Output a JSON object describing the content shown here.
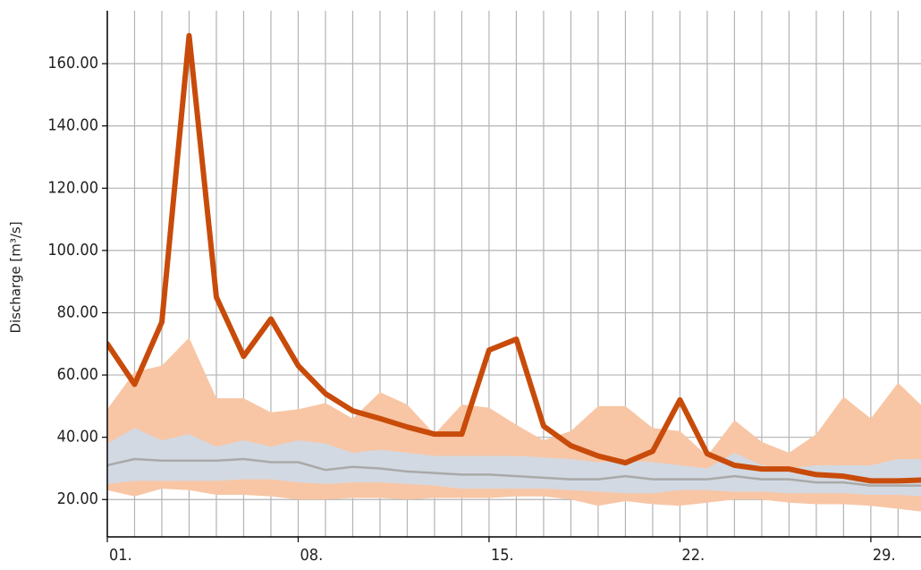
{
  "chart_data": {
    "type": "line",
    "y_label": "Discharge [m³/s]",
    "x": [
      1,
      2,
      3,
      4,
      5,
      6,
      7,
      8,
      9,
      10,
      11,
      12,
      13,
      14,
      15,
      16,
      17,
      18,
      19,
      20,
      21,
      22,
      23,
      24,
      25,
      26,
      27,
      28,
      29,
      30,
      31
    ],
    "xlim": [
      1,
      30.84
    ],
    "ylim": [
      8,
      177
    ],
    "grid": true,
    "grid_color": "#b3b3b3",
    "xgrid": [
      1,
      2,
      3,
      4,
      5,
      6,
      7,
      8,
      9,
      10,
      11,
      12,
      13,
      14,
      15,
      16,
      17,
      18,
      19,
      20,
      21,
      22,
      23,
      24,
      25,
      26,
      27,
      28,
      29,
      30
    ],
    "xticks": [
      {
        "value": 1,
        "label": "01."
      },
      {
        "value": 8,
        "label": "08."
      },
      {
        "value": 15,
        "label": "15."
      },
      {
        "value": 22,
        "label": "22."
      },
      {
        "value": 29,
        "label": "29."
      }
    ],
    "yticks": [
      {
        "value": 20,
        "label": "20.00"
      },
      {
        "value": 40,
        "label": "40.00"
      },
      {
        "value": 60,
        "label": "60.00"
      },
      {
        "value": 80,
        "label": "80.00"
      },
      {
        "value": 100,
        "label": "100.00"
      },
      {
        "value": 120,
        "label": "120.00"
      },
      {
        "value": 140,
        "label": "140.00"
      },
      {
        "value": 160,
        "label": "160.00"
      }
    ],
    "bands": [
      {
        "color": "#f8c6a5",
        "high": [
          49,
          61,
          63,
          72,
          52.5,
          52.5,
          48,
          49,
          51,
          46,
          54.5,
          50.5,
          41,
          50.5,
          49.5,
          44,
          39,
          42,
          50,
          50,
          43,
          42,
          34,
          45.5,
          38.5,
          35,
          41,
          53,
          46,
          57.5,
          49
        ],
        "low": [
          23,
          21,
          23.5,
          23,
          21.5,
          21.5,
          21,
          20,
          20,
          20.5,
          20.5,
          20,
          20.5,
          20.5,
          20.5,
          21,
          21,
          20,
          18,
          19.5,
          18.5,
          18,
          19,
          20,
          20,
          19,
          18.5,
          18.5,
          18,
          17,
          16
        ]
      },
      {
        "color": "#d3d9e2",
        "high": [
          38,
          43,
          39,
          41,
          37,
          39,
          37,
          39,
          38,
          35,
          36,
          35,
          34,
          34,
          34,
          34,
          33.5,
          33,
          32,
          32.5,
          32,
          31,
          30,
          35,
          31,
          30,
          31,
          31,
          31,
          33,
          33
        ],
        "low": [
          25,
          26,
          26,
          26,
          26,
          26.5,
          26.5,
          25.5,
          25,
          25.5,
          25.5,
          25,
          24.5,
          23.5,
          23.5,
          23.5,
          23.5,
          23,
          22.5,
          22,
          22,
          23,
          23,
          22.5,
          22.5,
          22,
          22,
          22,
          21.5,
          21.5,
          21
        ]
      }
    ],
    "series": [
      {
        "color": "#a9a9a9",
        "values": [
          31,
          33,
          32.5,
          32.5,
          32.5,
          33,
          32,
          32,
          29.5,
          30.5,
          30,
          29,
          28.5,
          28,
          28,
          27.5,
          27,
          26.5,
          26.5,
          27.5,
          26.5,
          26.5,
          26.5,
          27.5,
          26.5,
          26.5,
          25.5,
          25.5,
          24.5,
          24.5,
          24.5
        ]
      },
      {
        "color": "#c84b0a",
        "values": [
          70,
          57,
          77,
          169,
          85,
          66,
          78,
          63,
          54,
          48.5,
          46,
          43.3,
          41,
          41,
          68,
          71.5,
          43.6,
          37.3,
          34,
          31.8,
          35.5,
          52,
          34.7,
          31,
          29.8,
          29.8,
          28,
          27.5,
          26,
          26,
          26.3
        ]
      }
    ]
  }
}
